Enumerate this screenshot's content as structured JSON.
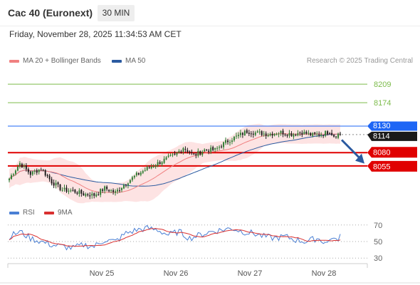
{
  "header": {
    "title": "Cac 40 (Euronext)",
    "timeframe": "30 MIN",
    "timestamp": "Friday, November 28, 2025 11:34:53 AM CET"
  },
  "legend": {
    "items": [
      {
        "label": "MA 20 + Bollinger Bands",
        "color": "#f08080"
      },
      {
        "label": "MA 50",
        "color": "#2b5aa0"
      }
    ],
    "credit": "Research © 2025 Trading Central"
  },
  "colors": {
    "up": "#2e7d32",
    "down": "#1a1a1a",
    "resistance": "#7cbb4a",
    "pivot_blue": "#1e66f5",
    "support": "#e00000",
    "bands": "#fde3e3",
    "ma20": "#f08080",
    "ma50": "#2b5aa0",
    "rsi": "#4a7fd4",
    "rsi_ma": "#d93030",
    "arrow": "#2b5aa0"
  },
  "chart_data": [
    {
      "type": "candlestick",
      "x_labels": [
        "Nov 25",
        "Nov 26",
        "Nov 27",
        "Nov 28"
      ],
      "ylim": [
        7985,
        8240
      ],
      "price_levels": [
        {
          "value": 8209,
          "label": "8209",
          "kind": "resistance"
        },
        {
          "value": 8174,
          "label": "8174",
          "kind": "resistance"
        },
        {
          "value": 8130,
          "label": "8130",
          "kind": "pivot"
        },
        {
          "value": 8114,
          "label": "8114",
          "kind": "last"
        },
        {
          "value": 8080,
          "label": "8080",
          "kind": "support"
        },
        {
          "value": 8055,
          "label": "8055",
          "kind": "support"
        }
      ],
      "close_anchors": [
        [
          0,
          8031
        ],
        [
          5,
          8060
        ],
        [
          10,
          8040
        ],
        [
          15,
          8050
        ],
        [
          20,
          8025
        ],
        [
          25,
          8010
        ],
        [
          30,
          8008
        ],
        [
          35,
          8002
        ],
        [
          40,
          8000
        ],
        [
          45,
          8013
        ],
        [
          50,
          8005
        ],
        [
          55,
          8023
        ],
        [
          60,
          8038
        ],
        [
          65,
          8050
        ],
        [
          70,
          8060
        ],
        [
          75,
          8070
        ],
        [
          78,
          8075
        ],
        [
          82,
          8090
        ],
        [
          87,
          8075
        ],
        [
          92,
          8085
        ],
        [
          97,
          8085
        ],
        [
          102,
          8100
        ],
        [
          107,
          8110
        ],
        [
          112,
          8120
        ],
        [
          117,
          8117
        ],
        [
          122,
          8115
        ],
        [
          128,
          8118
        ],
        [
          133,
          8115
        ],
        [
          138,
          8118
        ],
        [
          143,
          8113
        ],
        [
          148,
          8116
        ],
        [
          151,
          8120
        ],
        [
          153,
          8112
        ],
        [
          156,
          8116
        ]
      ],
      "series": [
        {
          "name": "MA 20 + Bollinger Bands"
        },
        {
          "name": "MA 50"
        }
      ],
      "projection": "down",
      "grid": false
    },
    {
      "type": "line",
      "name": "RSI",
      "legend": [
        {
          "label": "RSI",
          "color": "#4a7fd4"
        },
        {
          "label": "9MA",
          "color": "#d93030"
        }
      ],
      "ylim": [
        25,
        75
      ],
      "levels": [
        70,
        50,
        30
      ],
      "level_labels": [
        "70",
        "50",
        "30"
      ],
      "anchors": [
        [
          0,
          56
        ],
        [
          5,
          62
        ],
        [
          10,
          54
        ],
        [
          15,
          50
        ],
        [
          20,
          46
        ],
        [
          25,
          44
        ],
        [
          30,
          42
        ],
        [
          35,
          46
        ],
        [
          40,
          44
        ],
        [
          45,
          52
        ],
        [
          50,
          50
        ],
        [
          55,
          60
        ],
        [
          60,
          64
        ],
        [
          65,
          66
        ],
        [
          70,
          64
        ],
        [
          75,
          58
        ],
        [
          80,
          62
        ],
        [
          85,
          54
        ],
        [
          90,
          58
        ],
        [
          95,
          62
        ],
        [
          100,
          64
        ],
        [
          105,
          66
        ],
        [
          110,
          62
        ],
        [
          115,
          60
        ],
        [
          120,
          56
        ],
        [
          125,
          54
        ],
        [
          130,
          56
        ],
        [
          135,
          52
        ],
        [
          140,
          50
        ],
        [
          145,
          54
        ],
        [
          150,
          48
        ],
        [
          152,
          56
        ],
        [
          154,
          50
        ],
        [
          156,
          58
        ]
      ]
    }
  ]
}
